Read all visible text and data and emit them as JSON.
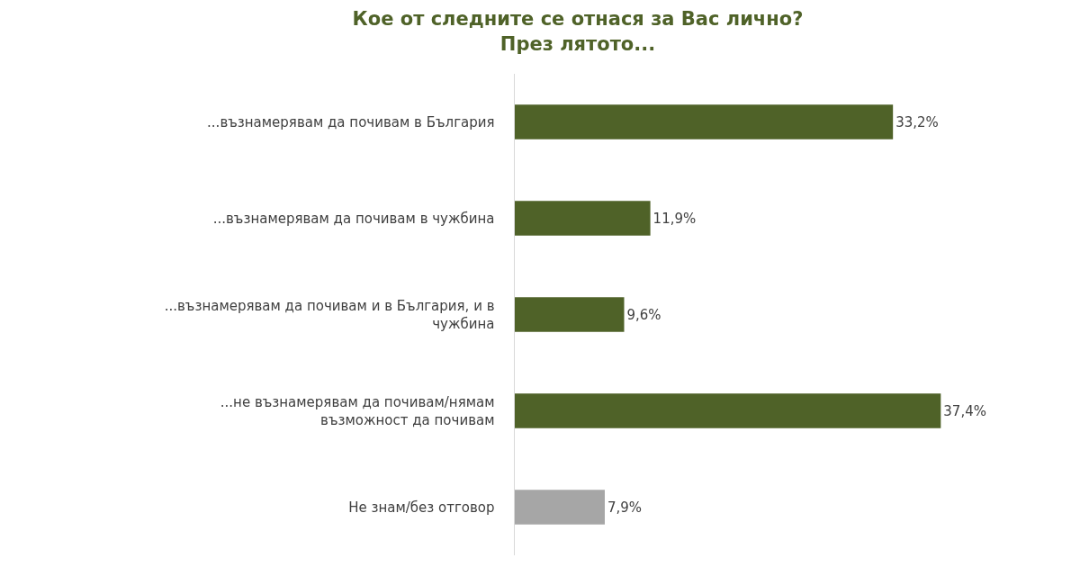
{
  "chart_data": {
    "type": "bar",
    "orientation": "horizontal",
    "title": "Кое от следните се отнася за Вас лично?\nПрез лятото...",
    "categories": [
      "...възнамерявам да почивам в България",
      "...възнамерявам да почивам в чужбина",
      "...възнамерявам да почивам и в България, и в чужбина",
      "...не възнамерявам да почивам/нямам възможност да почивам",
      "Не знам/без отговор"
    ],
    "values": [
      33.2,
      11.9,
      9.6,
      37.4,
      7.9
    ],
    "colors": [
      "#4f6228",
      "#4f6228",
      "#4f6228",
      "#4f6228",
      "#a6a6a6"
    ],
    "value_labels": [
      "33,2%",
      "11,9%",
      "9,6%",
      "37,4%",
      "7,9%"
    ],
    "tick_labels": "y"
  }
}
